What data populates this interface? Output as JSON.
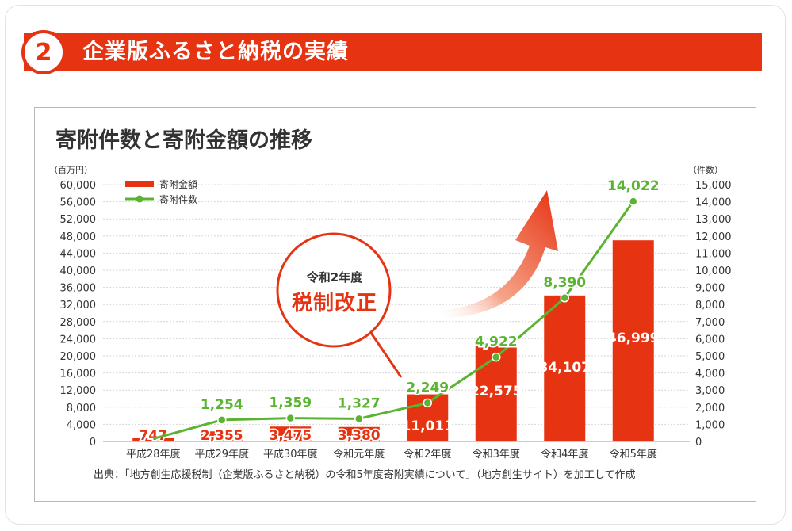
{
  "section": {
    "number": "2",
    "title": "企業版ふるさと納税の実績"
  },
  "chart_title": "寄附件数と寄附金額の推移",
  "left_unit": "（百万円）",
  "right_unit": "（件数）",
  "callout": {
    "line1": "令和2年度",
    "line2": "税制改正"
  },
  "source": "出典：「地方創生応援税制（企業版ふるさと納税）の令和5年度寄附実績について」（地方創生サイト）を加工して作成",
  "colors": {
    "accent_red": "#e63312",
    "line_green": "#5bb431"
  },
  "chart_data": {
    "type": "bar",
    "categories": [
      "平成28年度",
      "平成29年度",
      "平成30年度",
      "令和元年度",
      "令和2年度",
      "令和3年度",
      "令和4年度",
      "令和5年度"
    ],
    "series": [
      {
        "name": "寄附金額",
        "type": "bar",
        "axis": "left",
        "values": [
          747,
          2355,
          3475,
          3380,
          11011,
          22575,
          34107,
          46999
        ],
        "labels": [
          "747",
          "2,355",
          "3,475",
          "3,380",
          "11,011",
          "22,575",
          "34,107",
          "46,999"
        ]
      },
      {
        "name": "寄附件数",
        "type": "line",
        "axis": "right",
        "values": [
          null,
          1254,
          1359,
          1327,
          2249,
          4922,
          8390,
          14022
        ],
        "labels": [
          "",
          "1,254",
          "1,359",
          "1,327",
          "2,249",
          "4,922",
          "8,390",
          "14,022"
        ],
        "line_start": 160
      }
    ],
    "y_left": {
      "range": [
        0,
        60000
      ],
      "ticks": [
        "0",
        "4,000",
        "8,000",
        "12,000",
        "16,000",
        "20,000",
        "24,000",
        "28,000",
        "32,000",
        "36,000",
        "40,000",
        "44,000",
        "48,000",
        "52,000",
        "56,000",
        "60,000"
      ]
    },
    "y_right": {
      "range": [
        0,
        15000
      ],
      "ticks": [
        "0",
        "1,000",
        "2,000",
        "3,000",
        "4,000",
        "5,000",
        "6,000",
        "7,000",
        "8,000",
        "9,000",
        "10,000",
        "11,000",
        "12,000",
        "13,000",
        "14,000",
        "15,000"
      ]
    },
    "legend": {
      "position": "top-left",
      "items": [
        "寄附金額",
        "寄附件数"
      ]
    },
    "grid": true
  }
}
